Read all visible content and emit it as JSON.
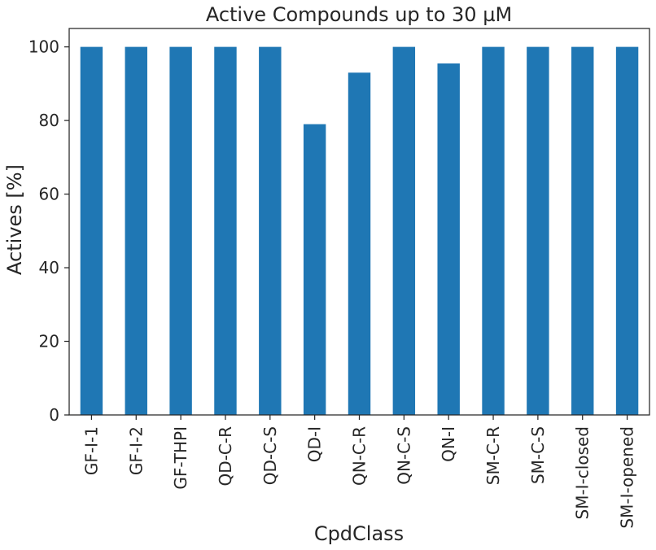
{
  "chart_data": {
    "type": "bar",
    "title": "Active Compounds up to 30 µM",
    "xlabel": "CpdClass",
    "ylabel": "Actives [%]",
    "categories": [
      "GF-I-1",
      "GF-I-2",
      "GF-THPI",
      "QD-C-R",
      "QD-C-S",
      "QD-I",
      "QN-C-R",
      "QN-C-S",
      "QN-I",
      "SM-C-R",
      "SM-C-S",
      "SM-I-closed",
      "SM-I-opened"
    ],
    "values": [
      100,
      100,
      100,
      100,
      100,
      79,
      93,
      100,
      95.5,
      100,
      100,
      100,
      100
    ],
    "ylim": [
      0,
      105
    ],
    "yticks": [
      0,
      20,
      40,
      60,
      80,
      100
    ],
    "bar_color": "#1f77b4",
    "grid": false,
    "legend": "none"
  }
}
